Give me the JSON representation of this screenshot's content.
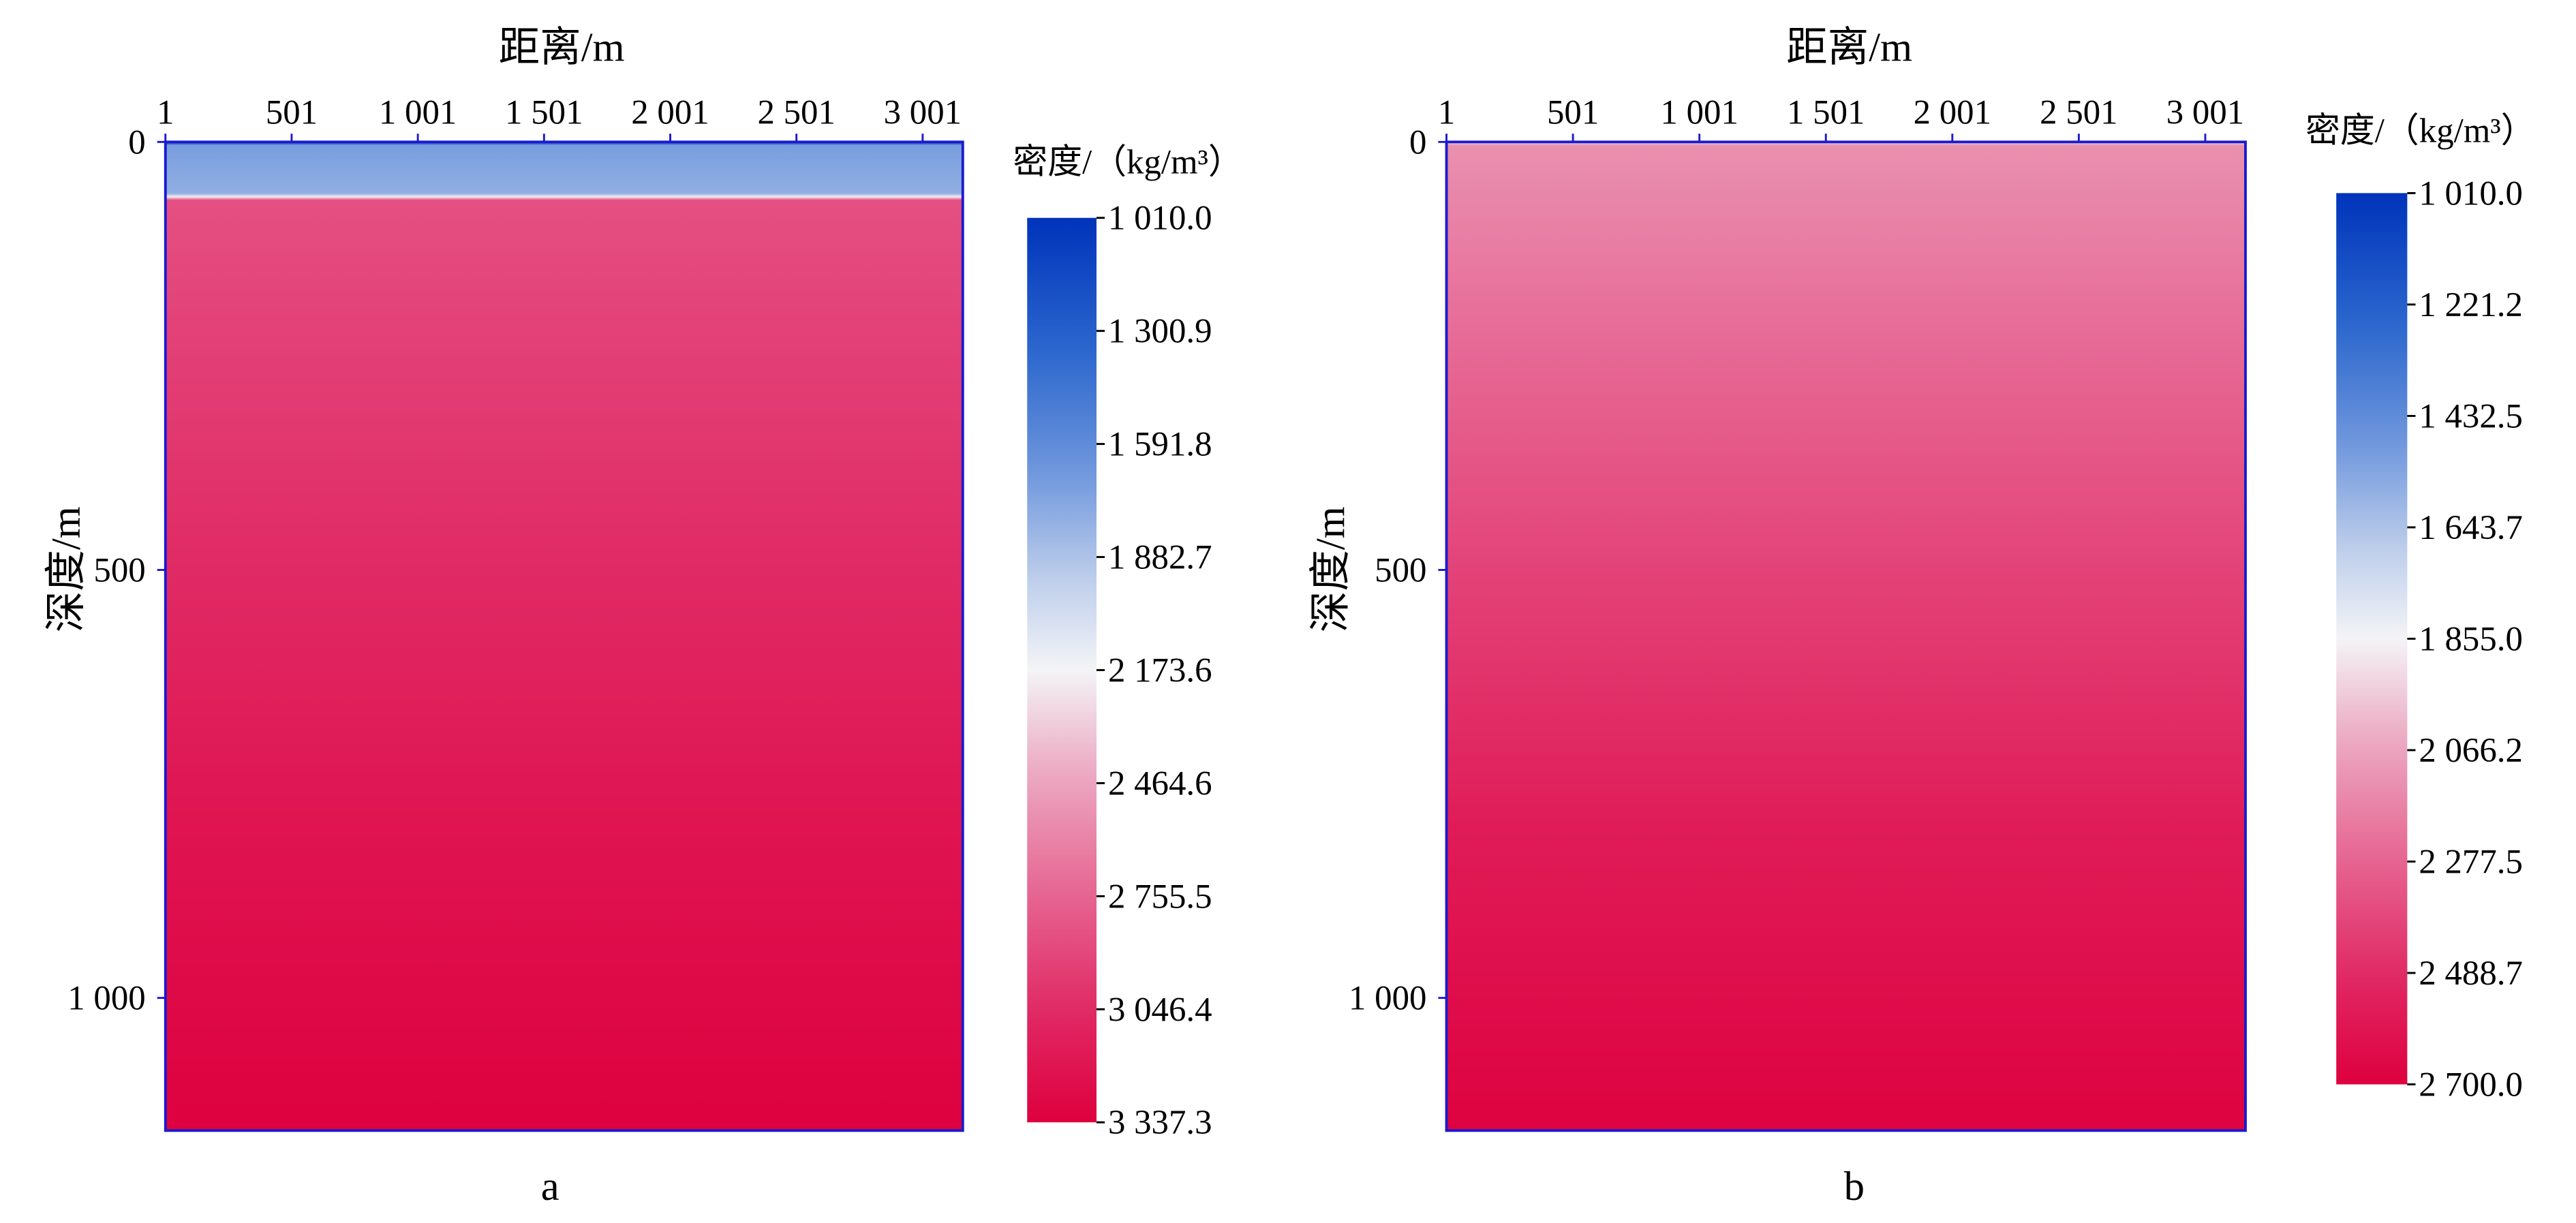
{
  "chart_data": [
    {
      "type": "heatmap",
      "panel_label": "a",
      "xlabel": "距离/m",
      "ylabel": "深度/m",
      "x_ticks": [
        "1",
        "501",
        "1 001",
        "1 501",
        "2 001",
        "2 501",
        "3 001"
      ],
      "x_tick_values": [
        1,
        501,
        1001,
        1501,
        2001,
        2501,
        3001
      ],
      "xlim": [
        1,
        3160
      ],
      "y_ticks": [
        "0",
        "500",
        "1 000"
      ],
      "y_tick_values": [
        0,
        500,
        1000
      ],
      "ylim": [
        0,
        1155
      ],
      "colorbar_title": "密度/（kg/m³）",
      "colorbar_ticks": [
        "1 010.0",
        "1 300.9",
        "1 591.8",
        "1 882.7",
        "2 173.6",
        "2 464.6",
        "2 755.5",
        "3 046.4",
        "3 337.3"
      ],
      "colorbar_range": [
        1010.0,
        3337.3
      ],
      "density_profile": [
        {
          "depth": 0,
          "density": 1010.0
        },
        {
          "depth": 4,
          "density": 1700.0
        },
        {
          "depth": 60,
          "density": 1780.0
        },
        {
          "depth": 64,
          "density": 2200.0
        },
        {
          "depth": 68,
          "density": 2860.0
        },
        {
          "depth": 200,
          "density": 2920.0
        },
        {
          "depth": 500,
          "density": 3050.0
        },
        {
          "depth": 800,
          "density": 3200.0
        },
        {
          "depth": 1155,
          "density": 3330.0
        }
      ]
    },
    {
      "type": "heatmap",
      "panel_label": "b",
      "xlabel": "距离/m",
      "ylabel": "深度/m",
      "x_ticks": [
        "1",
        "501",
        "1 001",
        "1 501",
        "2 001",
        "2 501",
        "3 001"
      ],
      "x_tick_values": [
        1,
        501,
        1001,
        1501,
        2001,
        2501,
        3001
      ],
      "xlim": [
        1,
        3160
      ],
      "y_ticks": [
        "0",
        "500",
        "1 000"
      ],
      "y_tick_values": [
        0,
        500,
        1000
      ],
      "ylim": [
        0,
        1155
      ],
      "colorbar_title": "密度/（kg/m³）",
      "colorbar_ticks": [
        "1 010.0",
        "1 221.2",
        "1 432.5",
        "1 643.7",
        "1 855.0",
        "2 066.2",
        "2 277.5",
        "2 488.7",
        "2 700.0"
      ],
      "colorbar_range": [
        1010.0,
        2700.0
      ],
      "density_profile": [
        {
          "depth": 0,
          "density": 1900.0
        },
        {
          "depth": 4,
          "density": 2130.0
        },
        {
          "depth": 200,
          "density": 2240.0
        },
        {
          "depth": 500,
          "density": 2400.0
        },
        {
          "depth": 800,
          "density": 2560.0
        },
        {
          "depth": 1155,
          "density": 2690.0
        }
      ]
    }
  ]
}
